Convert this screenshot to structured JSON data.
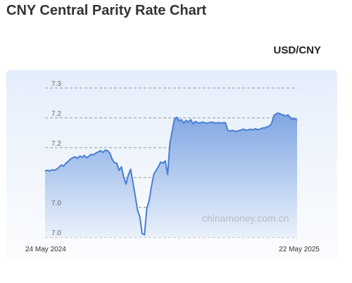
{
  "page": {
    "title": "CNY Central Parity Rate Chart",
    "pair": "USD/CNY",
    "watermark": "chinamoney.com.cn"
  },
  "colors": {
    "line": "#4a7fd4",
    "fill_top": "#7fa6e3",
    "fill_bottom": "#eaf1fb",
    "grid": "#999999"
  },
  "chart_data": {
    "type": "area",
    "title": "CNY Central Parity Rate Chart",
    "xlabel": "",
    "ylabel": "",
    "ylim": [
      7.0,
      7.25
    ],
    "y_ticks": [
      {
        "value": 7.25,
        "label": "7.3"
      },
      {
        "value": 7.2,
        "label": "7.2"
      },
      {
        "value": 7.15,
        "label": "7.2"
      },
      {
        "value": 7.1,
        "label": ""
      },
      {
        "value": 7.05,
        "label": "7.0"
      },
      {
        "value": 7.0,
        "label": "7.0"
      }
    ],
    "x_ticks": [
      "24 May 2024",
      "22 May 2025"
    ],
    "grid": true,
    "legend": "none",
    "series": [
      {
        "values": [
          7.111,
          7.112,
          7.111,
          7.113,
          7.112,
          7.114,
          7.117,
          7.121,
          7.119,
          7.124,
          7.127,
          7.131,
          7.133,
          7.135,
          7.132,
          7.136,
          7.134,
          7.137,
          7.133,
          7.136,
          7.139,
          7.138,
          7.141,
          7.143,
          7.145,
          7.142,
          7.146,
          7.145,
          7.141,
          7.131,
          7.125,
          7.124,
          7.112,
          7.118,
          7.101,
          7.089,
          7.104,
          7.114,
          7.092,
          7.069,
          7.045,
          7.034,
          7.006,
          7.004,
          7.048,
          7.061,
          7.085,
          7.105,
          7.112,
          7.118,
          7.126,
          7.124,
          7.128,
          7.105,
          7.158,
          7.178,
          7.198,
          7.201,
          7.195,
          7.197,
          7.191,
          7.196,
          7.193,
          7.197,
          7.19,
          7.194,
          7.192,
          7.191,
          7.193,
          7.192,
          7.191,
          7.192,
          7.193,
          7.192,
          7.191,
          7.192,
          7.191,
          7.192,
          7.192,
          7.179,
          7.178,
          7.179,
          7.178,
          7.177,
          7.179,
          7.18,
          7.181,
          7.179,
          7.18,
          7.181,
          7.18,
          7.182,
          7.18,
          7.181,
          7.183,
          7.183,
          7.185,
          7.186,
          7.191,
          7.204,
          7.207,
          7.208,
          7.206,
          7.205,
          7.203,
          7.205,
          7.201,
          7.197,
          7.199,
          7.196
        ]
      }
    ]
  }
}
